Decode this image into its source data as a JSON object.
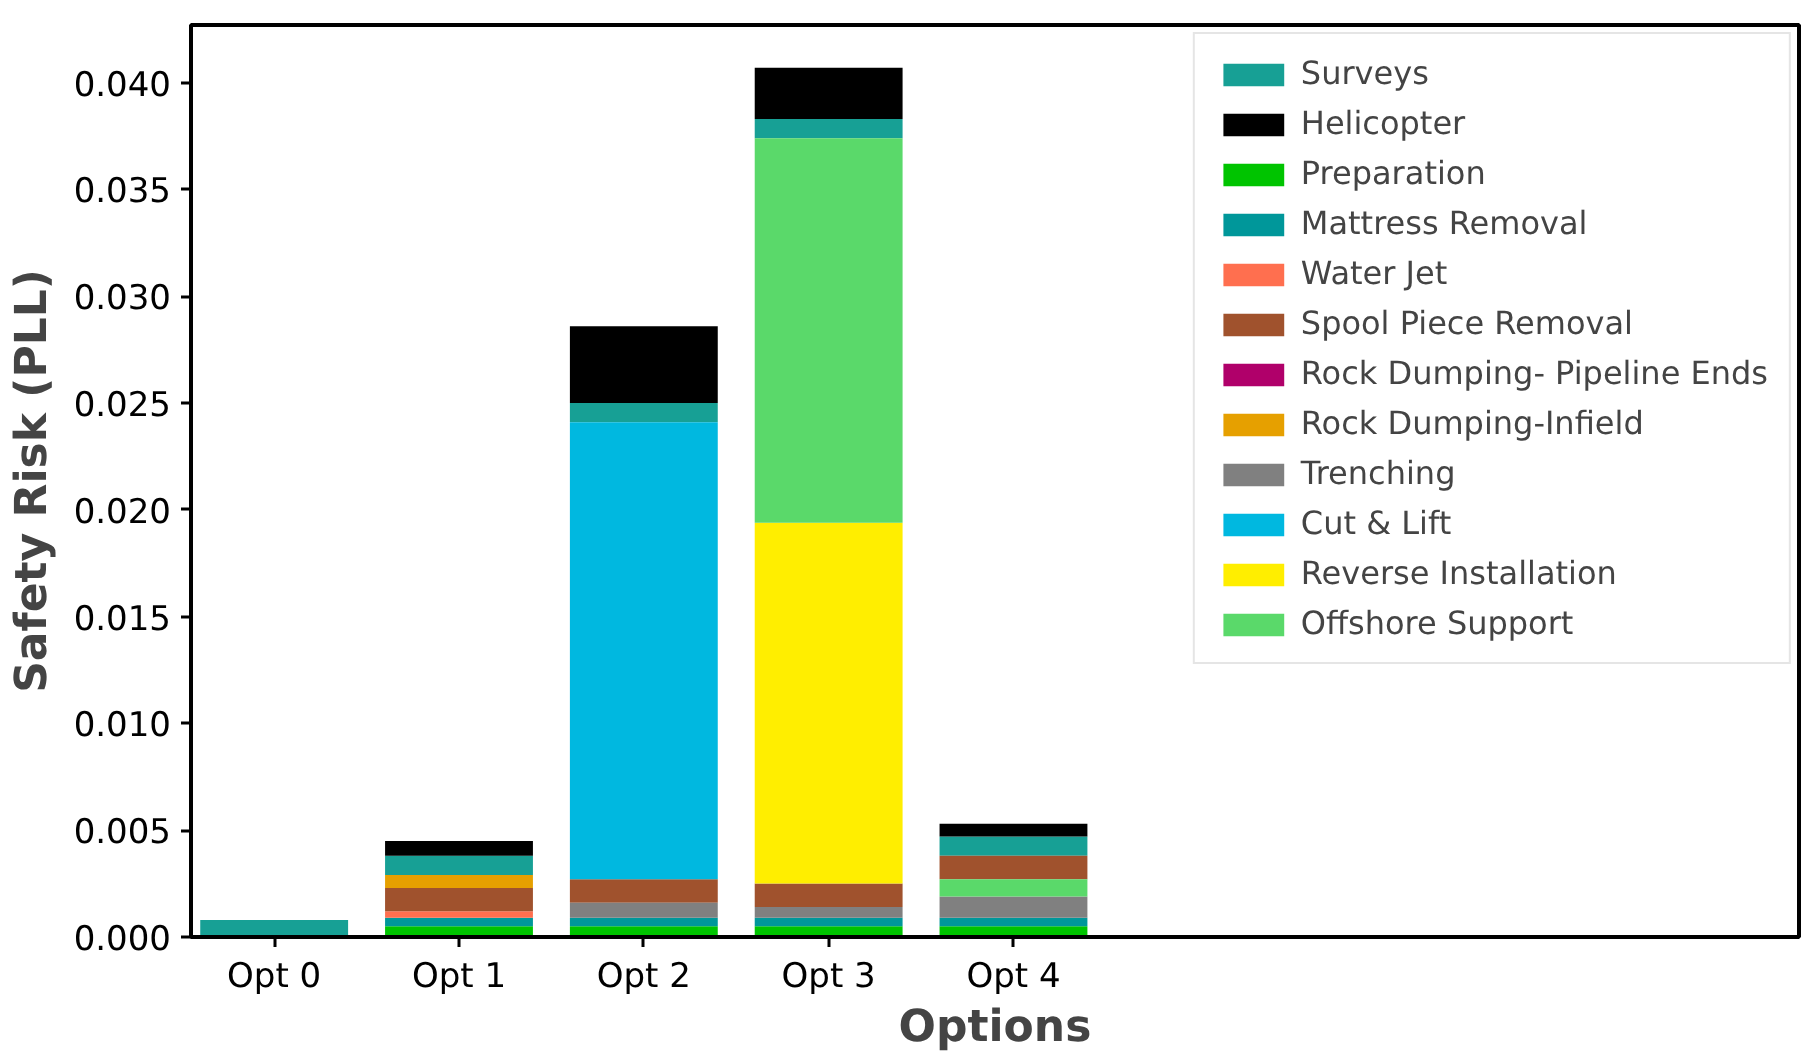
{
  "chart_data": {
    "type": "bar",
    "xlabel": "Options",
    "ylabel": "Safety Risk (PLL)",
    "categories": [
      "Opt 0",
      "Opt 1",
      "Opt 2",
      "Opt 3",
      "Opt 4"
    ],
    "ylim": [
      0,
      0.0427
    ],
    "yticks": [
      {
        "value": 0,
        "label": "0.000"
      },
      {
        "value": 0.005,
        "label": "0.005"
      },
      {
        "value": 0.01,
        "label": "0.010"
      },
      {
        "value": 0.015,
        "label": "0.015"
      },
      {
        "value": 0.02,
        "label": "0.020"
      },
      {
        "value": 0.025,
        "label": "0.025"
      },
      {
        "value": 0.03,
        "label": "0.030"
      },
      {
        "value": 0.035,
        "label": "0.035"
      },
      {
        "value": 0.04,
        "label": "0.040"
      }
    ],
    "grid": false,
    "legend": "top right",
    "series": [
      {
        "name": "Surveys",
        "color": "#17a095",
        "values": [
          0.0008,
          0.0009,
          0.0009,
          0.0009,
          0.0009
        ],
        "base": [
          0,
          0.0029,
          0.0241,
          0.0374,
          0.0038
        ]
      },
      {
        "name": "Helicopter",
        "color": "#000000",
        "values": [
          null,
          0.0007,
          0.0036,
          0.0024,
          0.0006
        ],
        "base": [
          null,
          0.0038,
          0.025,
          0.0383,
          0.0047
        ]
      },
      {
        "name": "Preparation",
        "color": "#00c400",
        "values": [
          null,
          0.0005,
          0.0005,
          0.0005,
          0.0005
        ],
        "base": [
          null,
          0,
          0,
          0,
          0
        ]
      },
      {
        "name": "Mattress Removal",
        "color": "#00979a",
        "values": [
          null,
          0.0004,
          0.0004,
          0.0004,
          0.0004
        ],
        "base": [
          null,
          0.0005,
          0.0005,
          0.0005,
          0.0005
        ]
      },
      {
        "name": "Water Jet",
        "color": "#ff6f4f",
        "values": [
          null,
          0.0003,
          null,
          null,
          null
        ],
        "base": [
          null,
          0.0009,
          null,
          null,
          null
        ]
      },
      {
        "name": "Spool Piece Removal",
        "color": "#a0522d",
        "values": [
          null,
          0.0011,
          0.0011,
          0.0011,
          0.0011
        ],
        "base": [
          null,
          0.0012,
          0.0016,
          0.0014,
          0.0027
        ]
      },
      {
        "name": "Rock Dumping- Pipeline Ends",
        "color": "#b0006a",
        "values": [
          null,
          null,
          null,
          null,
          null
        ],
        "base": [
          null,
          null,
          null,
          null,
          null
        ]
      },
      {
        "name": "Rock Dumping-Infield",
        "color": "#e6a000",
        "values": [
          null,
          0.0006,
          null,
          null,
          null
        ],
        "base": [
          null,
          0.0023,
          null,
          null,
          null
        ]
      },
      {
        "name": "Trenching",
        "color": "#808080",
        "values": [
          null,
          null,
          0.0007,
          0.0005,
          0.001
        ],
        "base": [
          null,
          null,
          0.0009,
          0.0009,
          0.0009
        ]
      },
      {
        "name": "Cut & Lift",
        "color": "#00b8e0",
        "values": [
          null,
          null,
          0.0214,
          null,
          null
        ],
        "base": [
          null,
          null,
          0.0027,
          null,
          null
        ]
      },
      {
        "name": "Reverse Installation",
        "color": "#ffee00",
        "values": [
          null,
          null,
          null,
          0.0169,
          null
        ],
        "base": [
          null,
          null,
          null,
          0.0025,
          null
        ]
      },
      {
        "name": "Offshore Support",
        "color": "#5ad96a",
        "values": [
          null,
          null,
          null,
          0.018,
          0.0008
        ],
        "base": [
          null,
          null,
          null,
          0.0194,
          0.0019
        ]
      }
    ]
  }
}
